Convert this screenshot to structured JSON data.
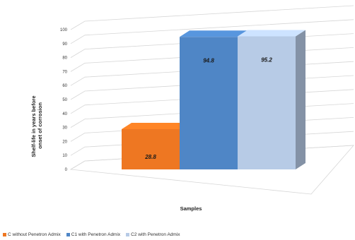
{
  "chart_data": {
    "type": "bar",
    "xlabel": "Samples",
    "ylabel": "Shelf-life in years before onset of corrosion",
    "ylim": [
      0,
      100
    ],
    "yticks": [
      0,
      10,
      20,
      30,
      40,
      50,
      60,
      70,
      80,
      90,
      100
    ],
    "grid": true,
    "legend_position": "bottom",
    "series": [
      {
        "name": "C without Penetron Admix",
        "value": 28.8,
        "label": "28.8",
        "color": "#ee7722"
      },
      {
        "name": "C1 with Penetron Admix",
        "value": 94.8,
        "label": "94.8",
        "color": "#4f86c6"
      },
      {
        "name": "C2 with Penetron Admix",
        "value": 95.2,
        "label": "95.2",
        "color": "#b7cbe6"
      }
    ]
  }
}
